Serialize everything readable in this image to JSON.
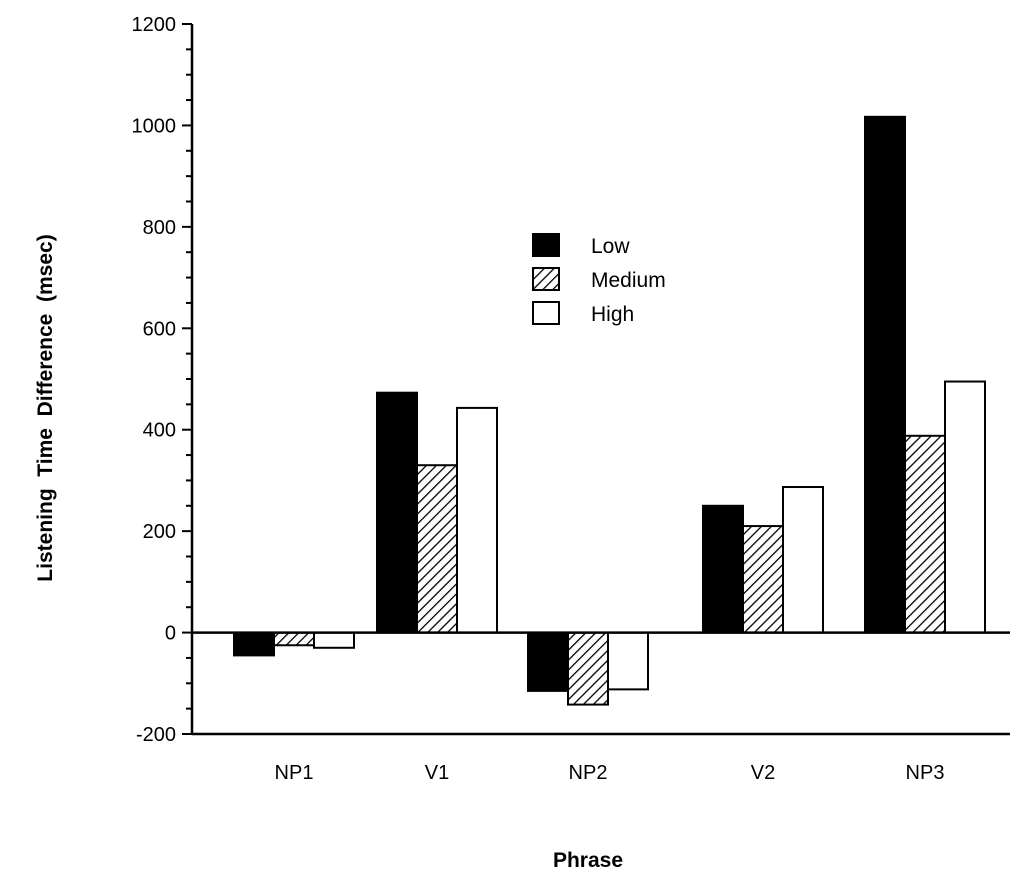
{
  "chart_data": {
    "type": "bar",
    "categories": [
      "NP1",
      "V1",
      "NP2",
      "V2",
      "NP3"
    ],
    "series": [
      {
        "name": "Low",
        "values": [
          -45,
          473,
          -115,
          250,
          1017
        ],
        "fill": "solid",
        "color": "#000000"
      },
      {
        "name": "Medium",
        "values": [
          -25,
          330,
          -142,
          210,
          388
        ],
        "fill": "hatched",
        "color": "#000000"
      },
      {
        "name": "High",
        "values": [
          -30,
          443,
          -112,
          287,
          495
        ],
        "fill": "empty",
        "color": "#ffffff"
      }
    ],
    "xlabel": "Phrase",
    "ylabel": "Listening  Time  Difference  (msec)",
    "ylim": [
      -200,
      1200
    ],
    "yticks": [
      -200,
      0,
      200,
      400,
      600,
      800,
      1000,
      1200
    ],
    "legend_position": "upper-center",
    "grid": false
  }
}
